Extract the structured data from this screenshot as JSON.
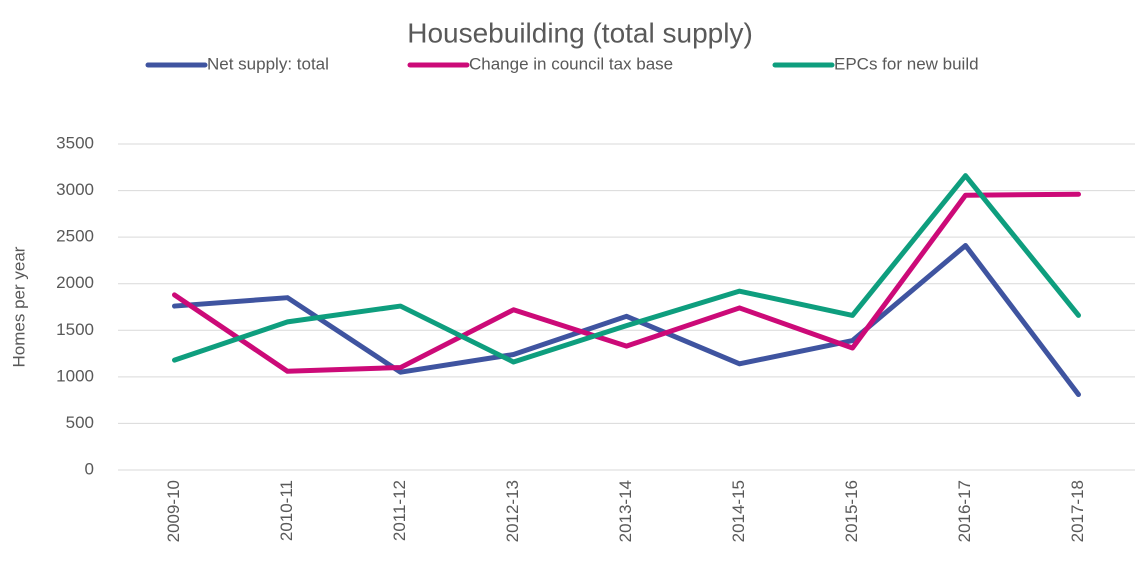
{
  "chart_data": {
    "type": "line",
    "title": "Housebuilding (total supply)",
    "y_label": "Homes per year",
    "categories": [
      "2009-10",
      "2010-11",
      "2011-12",
      "2012-13",
      "2013-14",
      "2014-15",
      "2015-16",
      "2016-17",
      "2017-18"
    ],
    "series": [
      {
        "name": "Net supply: total",
        "color": "#3f54a0",
        "values": [
          1760,
          1850,
          1050,
          1240,
          1650,
          1140,
          1390,
          2410,
          810
        ]
      },
      {
        "name": "Change in council tax base",
        "color": "#cc0a78",
        "values": [
          1880,
          1060,
          1100,
          1720,
          1330,
          1740,
          1310,
          2950,
          2960
        ]
      },
      {
        "name": "EPCs for new build",
        "color": "#0e9e7e",
        "values": [
          1180,
          1590,
          1760,
          1160,
          1550,
          1920,
          1660,
          3160,
          1660
        ]
      }
    ],
    "ylim": [
      0,
      3500
    ],
    "yticks": [
      0,
      500,
      1000,
      1500,
      2000,
      2500,
      3000,
      3500
    ],
    "grid": true,
    "legend": "top"
  }
}
